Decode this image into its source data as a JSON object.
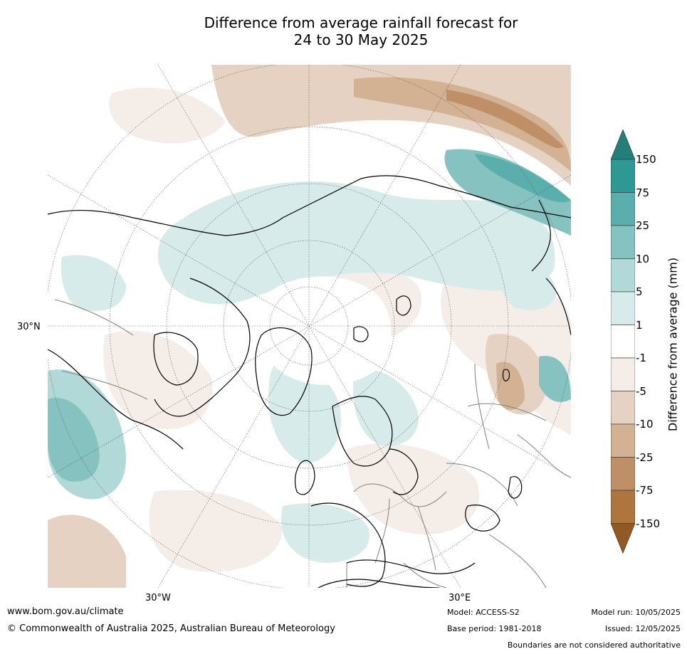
{
  "title": {
    "line1": "Difference from average rainfall forecast for",
    "line2": "24 to 30 May 2025"
  },
  "map": {
    "projection": "north-polar-stereographic",
    "tick_labels": {
      "lat_left": "30°N",
      "lon_bottom_left": "30°W",
      "lon_bottom_right": "30°E"
    },
    "colors": {
      "coast": "#000000",
      "borders": "#808080",
      "graticule": "#555555"
    }
  },
  "colorbar": {
    "label": "Difference from average (mm)",
    "ticks": [
      "150",
      "75",
      "25",
      "10",
      "5",
      "1",
      "-1",
      "-5",
      "-10",
      "-25",
      "-75",
      "-150"
    ],
    "bins": [
      {
        "range": ">150",
        "color": "#247e7a"
      },
      {
        "range": "75–150",
        "color": "#2e9894"
      },
      {
        "range": "25–75",
        "color": "#5aaeab"
      },
      {
        "range": "10–25",
        "color": "#86c3c0"
      },
      {
        "range": "5–10",
        "color": "#b1d9d7"
      },
      {
        "range": "1–5",
        "color": "#d6ebea"
      },
      {
        "range": "-1–1",
        "color": "#ffffff"
      },
      {
        "range": "-5– -1",
        "color": "#f4ede8"
      },
      {
        "range": "-10– -5",
        "color": "#e5d2c2"
      },
      {
        "range": "-25– -10",
        "color": "#d2b293"
      },
      {
        "range": "-75– -25",
        "color": "#bf9068"
      },
      {
        "range": "-150– -75",
        "color": "#ae753f"
      },
      {
        "range": "<-150",
        "color": "#915a24"
      }
    ]
  },
  "footer": {
    "url": "www.bom.gov.au/climate",
    "copyright": "© Commonwealth of Australia 2025, Australian Bureau of Meteorology",
    "model": "Model: ACCESS-S2",
    "base_period": "Base period: 1981-2018",
    "model_run": "Model run: 10/05/2025",
    "issued": "Issued: 12/05/2025",
    "disclaimer": "Boundaries are not considered authoritative"
  }
}
